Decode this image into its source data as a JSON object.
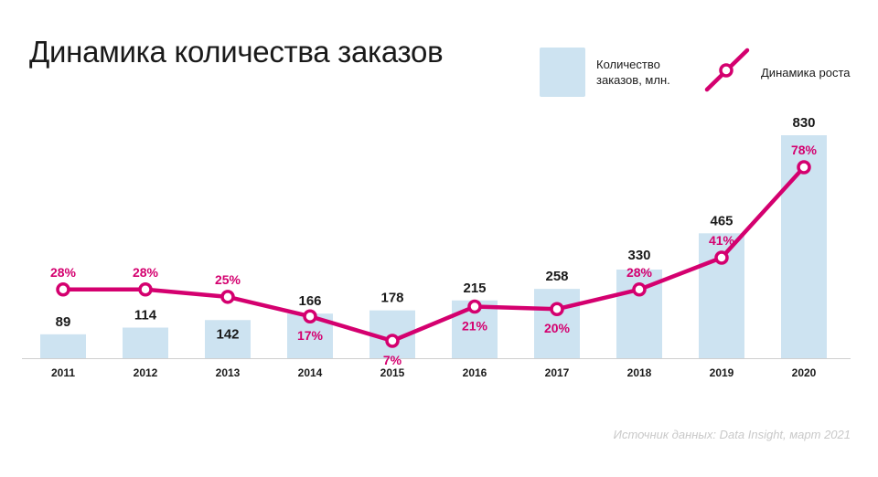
{
  "chart_data": {
    "type": "bar",
    "title": "Динамика количества заказов",
    "categories": [
      "2011",
      "2012",
      "2013",
      "2014",
      "2015",
      "2016",
      "2017",
      "2018",
      "2019",
      "2020"
    ],
    "series": [
      {
        "name": "Количество заказов, млн.",
        "kind": "bar",
        "values": [
          89,
          114,
          142,
          166,
          178,
          215,
          258,
          330,
          465,
          830
        ],
        "value_labels": [
          "89",
          "114",
          "142",
          "166",
          "178",
          "215",
          "258",
          "330",
          "465",
          "830"
        ],
        "color": "#cde3f1"
      },
      {
        "name": "Динамика роста",
        "kind": "line",
        "values": [
          28,
          28,
          25,
          17,
          7,
          21,
          20,
          28,
          41,
          78
        ],
        "value_labels": [
          "28%",
          "28%",
          "25%",
          "17%",
          "7%",
          "21%",
          "20%",
          "28%",
          "41%",
          "78%"
        ],
        "color": "#d4006f"
      }
    ],
    "legend": [
      {
        "label": "Количество заказов, млн.",
        "kind": "bar"
      },
      {
        "label": "Динамика роста",
        "kind": "line"
      }
    ],
    "legend_position": "top-right",
    "grid": false,
    "bar_ylim": [
      0,
      830
    ],
    "line_ylim": [
      0,
      78
    ]
  },
  "colors": {
    "bar": "#cde3f1",
    "line": "#d4006f",
    "text": "#1a1a1a",
    "axis": "#d0d0d0",
    "source": "#c9c9c9"
  },
  "source_note": "Источник данных: Data Insight, март 2021"
}
